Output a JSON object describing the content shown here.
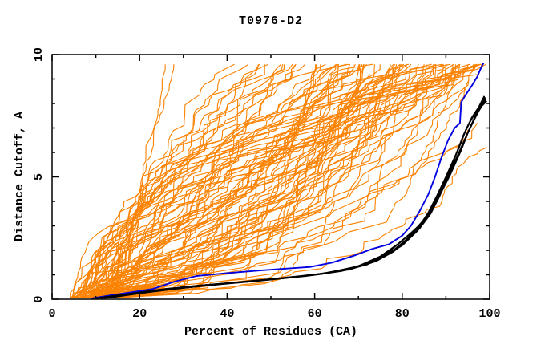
{
  "chart_data": {
    "type": "line",
    "title": "T0976-D2",
    "xlabel": "Percent of Residues (CA)",
    "ylabel": "Distance Cutoff, A",
    "xlim": [
      0,
      100
    ],
    "ylim": [
      0,
      10
    ],
    "x_major_ticks": [
      0,
      20,
      40,
      60,
      80,
      100
    ],
    "x_minor_ticks": [
      10,
      30,
      50,
      70,
      90
    ],
    "y_major_ticks": [
      0,
      5,
      10
    ],
    "y_minor_ticks": [
      1,
      2,
      3,
      4,
      6,
      7,
      8,
      9
    ],
    "grid": false,
    "legend": "none",
    "colors": {
      "server_models": "#FB8200",
      "best_models": "#000000",
      "highlight_model": "#0000E0",
      "frame": "#000000",
      "background": "#FFFFFF"
    },
    "highlight_series": {
      "name": "highlight-model",
      "color_key": "highlight_model",
      "points": [
        [
          9,
          0.03
        ],
        [
          13,
          0.15
        ],
        [
          18,
          0.28
        ],
        [
          23,
          0.42
        ],
        [
          28,
          0.72
        ],
        [
          33,
          0.95
        ],
        [
          40,
          1.07
        ],
        [
          47,
          1.17
        ],
        [
          53,
          1.25
        ],
        [
          59,
          1.32
        ],
        [
          64,
          1.5
        ],
        [
          69,
          1.78
        ],
        [
          73,
          2.05
        ],
        [
          77,
          2.25
        ],
        [
          80,
          2.6
        ],
        [
          82,
          3.0
        ],
        [
          84,
          3.6
        ],
        [
          86,
          4.3
        ],
        [
          87.5,
          5.0
        ],
        [
          89,
          5.8
        ],
        [
          90.5,
          6.5
        ],
        [
          92,
          7.0
        ],
        [
          93.2,
          7.2
        ],
        [
          93.5,
          8.05
        ],
        [
          94.5,
          8.35
        ],
        [
          96,
          8.75
        ],
        [
          97.2,
          9.1
        ],
        [
          98,
          9.45
        ],
        [
          98.6,
          9.65
        ]
      ]
    },
    "best_model_series": [
      {
        "name": "best-model-1",
        "points": [
          [
            11,
            0.04
          ],
          [
            18,
            0.2
          ],
          [
            26,
            0.42
          ],
          [
            35,
            0.58
          ],
          [
            45,
            0.72
          ],
          [
            55,
            0.9
          ],
          [
            63,
            1.08
          ],
          [
            70,
            1.35
          ],
          [
            75,
            1.75
          ],
          [
            79,
            2.25
          ],
          [
            82,
            2.7
          ],
          [
            85,
            3.2
          ],
          [
            87,
            3.75
          ],
          [
            89,
            4.4
          ],
          [
            91,
            5.1
          ],
          [
            93,
            5.9
          ],
          [
            94.5,
            6.6
          ],
          [
            96,
            7.2
          ],
          [
            97,
            7.6
          ],
          [
            98,
            7.95
          ],
          [
            99,
            8.2
          ]
        ]
      },
      {
        "name": "best-model-2",
        "points": [
          [
            12,
            0.05
          ],
          [
            20,
            0.25
          ],
          [
            29,
            0.45
          ],
          [
            39,
            0.62
          ],
          [
            50,
            0.8
          ],
          [
            60,
            1.0
          ],
          [
            68,
            1.25
          ],
          [
            74,
            1.55
          ],
          [
            78,
            1.95
          ],
          [
            81,
            2.4
          ],
          [
            84,
            2.9
          ],
          [
            86.5,
            3.5
          ],
          [
            88.5,
            4.2
          ],
          [
            90.5,
            5.0
          ],
          [
            92.5,
            5.8
          ],
          [
            94,
            6.4
          ],
          [
            95.5,
            7.0
          ],
          [
            96.8,
            7.5
          ],
          [
            98.2,
            7.9
          ],
          [
            99.3,
            8.1
          ]
        ]
      },
      {
        "name": "best-model-3",
        "points": [
          [
            10,
            0.04
          ],
          [
            16,
            0.18
          ],
          [
            24,
            0.38
          ],
          [
            33,
            0.55
          ],
          [
            43,
            0.7
          ],
          [
            53,
            0.88
          ],
          [
            62,
            1.05
          ],
          [
            69,
            1.3
          ],
          [
            74,
            1.62
          ],
          [
            78,
            2.0
          ],
          [
            81,
            2.45
          ],
          [
            84,
            3.0
          ],
          [
            86,
            3.55
          ],
          [
            88,
            4.25
          ],
          [
            90,
            5.0
          ],
          [
            91.5,
            5.6
          ],
          [
            93,
            6.2
          ],
          [
            94.5,
            6.9
          ],
          [
            96,
            7.45
          ],
          [
            97.5,
            7.85
          ],
          [
            98.8,
            8.3
          ]
        ]
      },
      {
        "name": "best-model-4",
        "points": [
          [
            13,
            0.06
          ],
          [
            22,
            0.3
          ],
          [
            31,
            0.5
          ],
          [
            42,
            0.68
          ],
          [
            52,
            0.85
          ],
          [
            61,
            1.02
          ],
          [
            68,
            1.22
          ],
          [
            73,
            1.5
          ],
          [
            77,
            1.95
          ],
          [
            80,
            2.4
          ],
          [
            83,
            2.85
          ],
          [
            85.5,
            3.35
          ],
          [
            87.5,
            3.95
          ],
          [
            89.5,
            4.7
          ],
          [
            91,
            5.3
          ],
          [
            92.5,
            6.0
          ],
          [
            94,
            6.7
          ],
          [
            95.5,
            7.25
          ],
          [
            97,
            7.7
          ],
          [
            98.5,
            8.0
          ],
          [
            99.2,
            8.15
          ]
        ]
      },
      {
        "name": "best-model-5",
        "points": [
          [
            11.5,
            0.05
          ],
          [
            19,
            0.22
          ],
          [
            27,
            0.4
          ],
          [
            37,
            0.6
          ],
          [
            48,
            0.78
          ],
          [
            58,
            0.95
          ],
          [
            66,
            1.15
          ],
          [
            72,
            1.42
          ],
          [
            76,
            1.78
          ],
          [
            80,
            2.2
          ],
          [
            83.5,
            2.8
          ],
          [
            86,
            3.4
          ],
          [
            88,
            4.05
          ],
          [
            90,
            4.85
          ],
          [
            92,
            5.55
          ],
          [
            93.5,
            6.1
          ],
          [
            95,
            6.8
          ],
          [
            96.5,
            7.35
          ],
          [
            97.8,
            7.8
          ],
          [
            99,
            8.25
          ]
        ]
      }
    ],
    "server_models_bundle": {
      "count": 92,
      "color_key": "server_models",
      "seed": 20181107,
      "start_percent_range": [
        4,
        15
      ],
      "top_percent_range": [
        25,
        100
      ],
      "max_cutoff_reached": 9.6,
      "bottom_hugger_fraction": 0.38,
      "note": "approximately 92 overlapping unlabeled server-model curves rendered procedurally from these ranges"
    }
  }
}
